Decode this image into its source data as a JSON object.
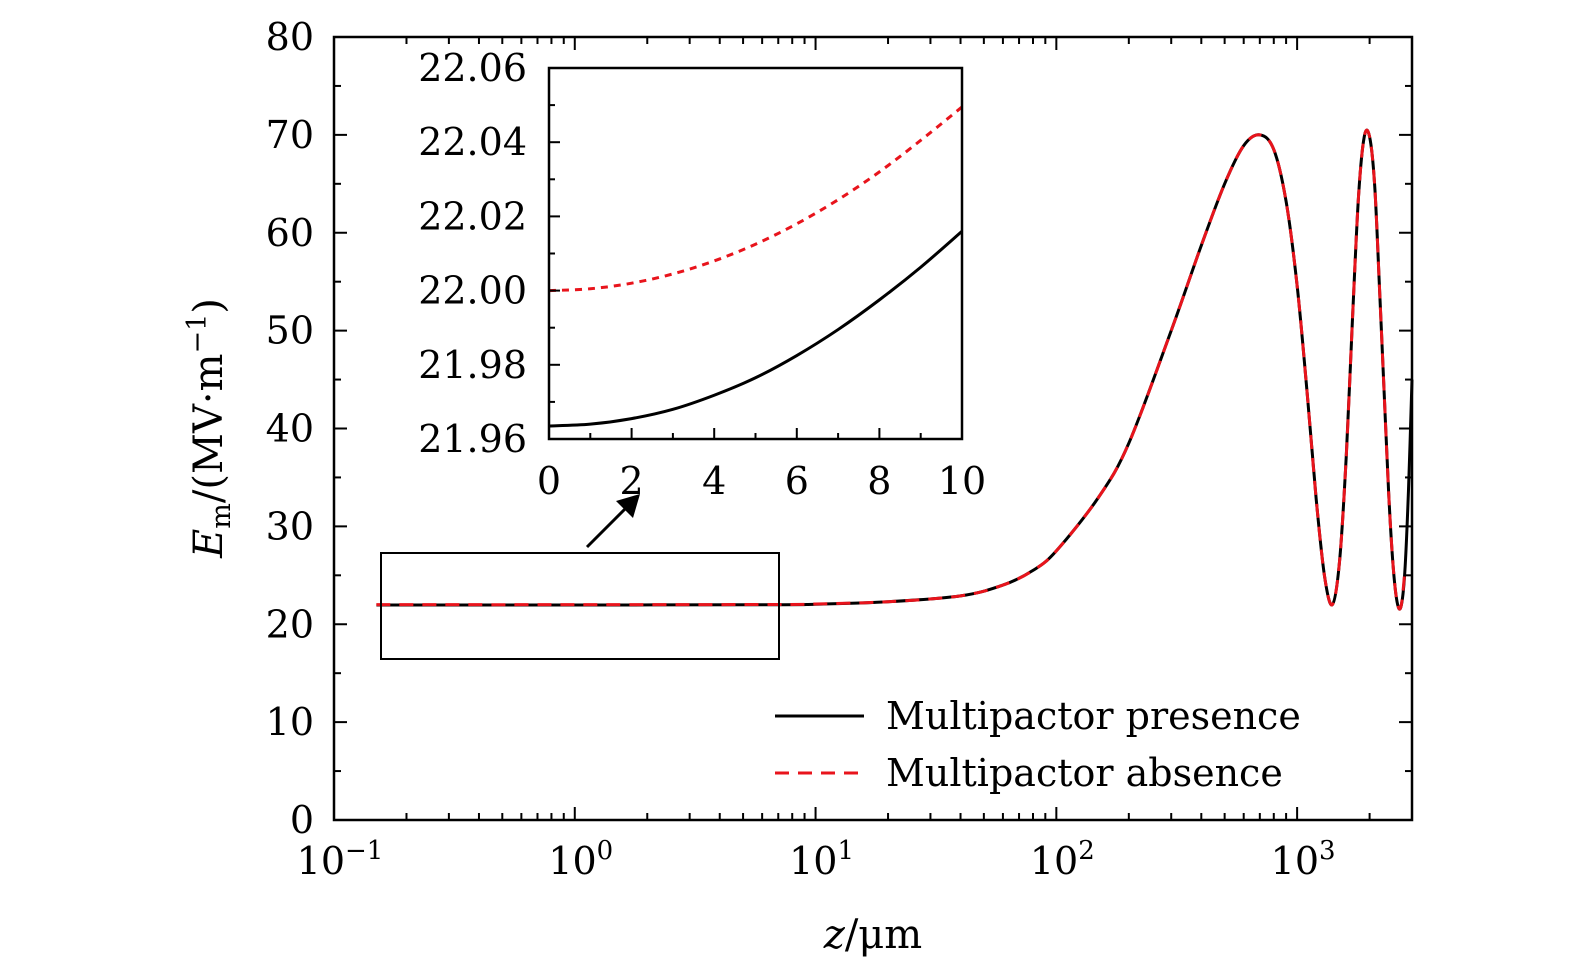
{
  "chart_data": [
    {
      "type": "line",
      "xlabel": "z/μm",
      "ylabel": "E_m/(MV·m^-1)",
      "xscale": "log",
      "xlim": [
        0.1,
        3000
      ],
      "ylim": [
        0,
        80
      ],
      "x_tick_labels": [
        {
          "base": "10",
          "exp": "−1"
        },
        {
          "base": "10",
          "exp": "0"
        },
        {
          "base": "10",
          "exp": "1"
        },
        {
          "base": "10",
          "exp": "2"
        },
        {
          "base": "10",
          "exp": "3"
        }
      ],
      "y_ticks": [
        "0",
        "10",
        "20",
        "30",
        "40",
        "50",
        "60",
        "70",
        "80"
      ],
      "legend": {
        "position": "bottom-right",
        "entries": [
          {
            "label": "Multipactor presence",
            "color": "#000000",
            "style": "solid"
          },
          {
            "label": "Multipactor absence",
            "color": "#e8141c",
            "style": "dashed"
          }
        ]
      },
      "series": [
        {
          "name": "Multipactor presence",
          "color": "#000000",
          "style": "solid",
          "x": [
            0.15,
            1,
            7,
            10,
            20,
            40,
            60,
            80,
            100,
            150,
            200,
            300,
            400,
            500,
            600,
            700,
            800,
            900,
            1000,
            1100,
            1200,
            1300,
            1400,
            1500,
            1600,
            1700,
            1800,
            1900,
            2000,
            2100,
            2200,
            2300,
            2400,
            2500,
            2600,
            2700,
            2800,
            2900,
            3000
          ],
          "y": [
            21.97,
            21.97,
            21.99,
            22.05,
            22.3,
            22.9,
            24.0,
            25.5,
            27.5,
            33.0,
            38.5,
            50.0,
            58.7,
            65.0,
            68.9,
            70.0,
            68.5,
            63.2,
            54.6,
            43.7,
            32.8,
            24.9,
            22.0,
            26.4,
            37.2,
            51.5,
            63.8,
            69.8,
            69.8,
            64.8,
            54.2,
            43.5,
            33.4,
            26.2,
            22.3,
            21.8,
            25.3,
            33.6,
            45.0
          ]
        },
        {
          "name": "Multipactor absence",
          "color": "#e8141c",
          "style": "dashed",
          "x": [
            0.15,
            1,
            7,
            10,
            20,
            40,
            60,
            80,
            100,
            150,
            200,
            300,
            400,
            500,
            600,
            700,
            800,
            900,
            1000,
            1100,
            1200,
            1300,
            1400,
            1500,
            1600,
            1700,
            1800,
            1900,
            2000,
            2100,
            2200,
            2300,
            2400,
            2500,
            2600,
            2700,
            2800
          ],
          "y": [
            22.0,
            22.0,
            22.02,
            22.07,
            22.3,
            22.9,
            24.0,
            25.5,
            27.5,
            33.0,
            38.5,
            50.0,
            58.7,
            65.0,
            68.9,
            70.0,
            68.5,
            63.2,
            54.6,
            43.7,
            32.8,
            24.9,
            22.0,
            26.4,
            37.2,
            51.5,
            63.8,
            69.8,
            69.8,
            64.8,
            54.2,
            43.5,
            33.4,
            26.2,
            22.3,
            21.8,
            25.3
          ]
        }
      ]
    },
    {
      "type": "line",
      "xlim": [
        0,
        10
      ],
      "ylim": [
        21.96,
        22.06
      ],
      "x_ticks": [
        "0",
        "2",
        "4",
        "6",
        "8",
        "10"
      ],
      "y_ticks": [
        "21.96",
        "21.98",
        "22.00",
        "22.02",
        "22.04",
        "22.06"
      ],
      "series": [
        {
          "name": "Multipactor presence",
          "color": "#000000",
          "style": "solid",
          "x": [
            0,
            1,
            2,
            3,
            4,
            5,
            6,
            7,
            8,
            9,
            10
          ],
          "y": [
            21.9635,
            21.964,
            21.9655,
            21.968,
            21.9718,
            21.9765,
            21.9825,
            21.9895,
            21.9975,
            22.0063,
            22.016
          ]
        },
        {
          "name": "Multipactor absence",
          "color": "#e8141c",
          "style": "dashed",
          "x": [
            0,
            1,
            2,
            3,
            4,
            5,
            6,
            7,
            8,
            9,
            10
          ],
          "y": [
            22.0,
            22.0005,
            22.002,
            22.0045,
            22.008,
            22.0125,
            22.018,
            22.0245,
            22.032,
            22.0405,
            22.0495
          ]
        }
      ]
    }
  ]
}
